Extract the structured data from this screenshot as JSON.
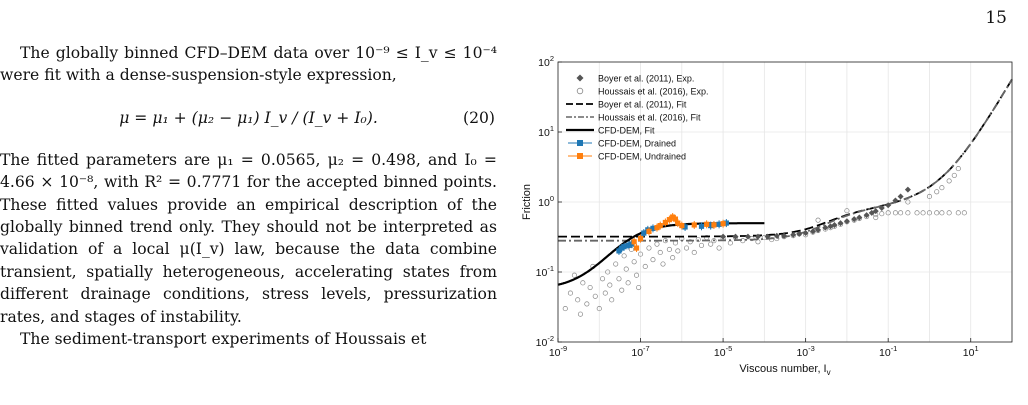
{
  "page": {
    "number": "15"
  },
  "text": {
    "p1": "The globally binned CFD–DEM data over 10⁻⁹ ≤ I_v ≤ 10⁻⁴ were fit with a dense-suspension-style expression,",
    "equation": "μ = μ₁ + (μ₂ − μ₁) I_v / (I_v + I₀).",
    "eq_number": "(20)",
    "p2": "The fitted parameters are μ₁ = 0.0565, μ₂ = 0.498, and I₀ = 4.66 × 10⁻⁸, with R² = 0.7771 for the accepted binned points. These fitted values provide an empirical description of the globally binned trend only. They should not be interpreted as validation of a local μ(I_v) law, because the data combine transient, spatially heterogeneous, accelerating states from different drainage conditions, stress levels, pressurization rates, and stages of instability.",
    "p3": "The sediment-transport experiments of Houssais et"
  },
  "chart_data": {
    "type": "scatter",
    "xlabel": "Viscous number, I",
    "xlabel_sub": "v",
    "ylabel": "Friction",
    "x_scale": "log",
    "y_scale": "log",
    "xlim": [
      1e-09,
      100
    ],
    "ylim": [
      0.01,
      100
    ],
    "x_ticks": [
      {
        "v": 1e-09,
        "base": "10",
        "exp": "-9"
      },
      {
        "v": 1e-07,
        "base": "10",
        "exp": "-7"
      },
      {
        "v": 1e-05,
        "base": "10",
        "exp": "-5"
      },
      {
        "v": 0.001,
        "base": "10",
        "exp": "-3"
      },
      {
        "v": 0.1,
        "base": "10",
        "exp": "-1"
      },
      {
        "v": 10,
        "base": "10",
        "exp": "1"
      }
    ],
    "y_ticks": [
      {
        "v": 0.01,
        "base": "10",
        "exp": "-2"
      },
      {
        "v": 0.1,
        "base": "10",
        "exp": "-1"
      },
      {
        "v": 1,
        "base": "10",
        "exp": "0"
      },
      {
        "v": 10,
        "base": "10",
        "exp": "1"
      },
      {
        "v": 100,
        "base": "10",
        "exp": "2"
      }
    ],
    "grid": true,
    "legend_position": "top-left",
    "legend": [
      {
        "label": "Boyer et al. (2011), Exp.",
        "marker": "diamond"
      },
      {
        "label": "Houssais et al. (2016), Exp.",
        "marker": "open-circle"
      },
      {
        "label": "Boyer et al. (2011), Fit",
        "marker": "dash"
      },
      {
        "label": "Houssais et al. (2016), Fit",
        "marker": "dashdot"
      },
      {
        "label": "CFD-DEM, Fit",
        "marker": "solid"
      },
      {
        "label": "CFD-DEM, Drained",
        "marker": "blue-errorbar"
      },
      {
        "label": "CFD-DEM, Undrained",
        "marker": "orange-errorbar"
      }
    ],
    "colors": {
      "boyer": "#555555",
      "houssais": "#888888",
      "fit": "#000000",
      "drained": "#1f77b4",
      "undrained": "#ff7f0e",
      "grid": "#e6e6e6"
    },
    "series": [
      {
        "name": "Boyer et al. (2011), Exp.",
        "points": [
          [
            1e-05,
            0.32
          ],
          [
            2e-05,
            0.32
          ],
          [
            4e-05,
            0.32
          ],
          [
            7e-05,
            0.32
          ],
          [
            0.00012,
            0.32
          ],
          [
            0.0002,
            0.33
          ],
          [
            0.0003,
            0.33
          ],
          [
            0.0005,
            0.34
          ],
          [
            0.0007,
            0.35
          ],
          [
            0.001,
            0.36
          ],
          [
            0.0015,
            0.38
          ],
          [
            0.002,
            0.4
          ],
          [
            0.003,
            0.43
          ],
          [
            0.004,
            0.45
          ],
          [
            0.005,
            0.47
          ],
          [
            0.007,
            0.5
          ],
          [
            0.01,
            0.53
          ],
          [
            0.015,
            0.57
          ],
          [
            0.02,
            0.6
          ],
          [
            0.03,
            0.65
          ],
          [
            0.04,
            0.7
          ],
          [
            0.05,
            0.74
          ],
          [
            0.07,
            0.82
          ],
          [
            0.1,
            0.9
          ],
          [
            0.15,
            1.05
          ],
          [
            0.2,
            1.2
          ],
          [
            0.3,
            1.5
          ]
        ]
      },
      {
        "name": "Houssais et al. (2016), Exp.",
        "points": [
          [
            1.5e-09,
            0.03
          ],
          [
            2e-09,
            0.05
          ],
          [
            2.5e-09,
            0.09
          ],
          [
            3e-09,
            0.04
          ],
          [
            3.5e-09,
            0.025
          ],
          [
            4e-09,
            0.07
          ],
          [
            5e-09,
            0.035
          ],
          [
            6e-09,
            0.06
          ],
          [
            7e-09,
            0.12
          ],
          [
            8e-09,
            0.045
          ],
          [
            1e-08,
            0.03
          ],
          [
            1.2e-08,
            0.08
          ],
          [
            1.4e-08,
            0.05
          ],
          [
            1.6e-08,
            0.1
          ],
          [
            1.8e-08,
            0.065
          ],
          [
            2e-08,
            0.04
          ],
          [
            2.5e-08,
            0.13
          ],
          [
            3e-08,
            0.08
          ],
          [
            3.5e-08,
            0.055
          ],
          [
            4e-08,
            0.17
          ],
          [
            4.5e-08,
            0.11
          ],
          [
            5e-08,
            0.07
          ],
          [
            6e-08,
            0.21
          ],
          [
            7e-08,
            0.14
          ],
          [
            8e-08,
            0.09
          ],
          [
            9e-08,
            0.06
          ],
          [
            1e-07,
            0.18
          ],
          [
            1.3e-07,
            0.12
          ],
          [
            1.6e-07,
            0.22
          ],
          [
            2e-07,
            0.15
          ],
          [
            2.5e-07,
            0.25
          ],
          [
            3e-07,
            0.19
          ],
          [
            3.5e-07,
            0.13
          ],
          [
            4e-07,
            0.28
          ],
          [
            5e-07,
            0.21
          ],
          [
            6e-07,
            0.16
          ],
          [
            7e-07,
            0.26
          ],
          [
            8e-07,
            0.2
          ],
          [
            1e-06,
            0.3
          ],
          [
            1.3e-06,
            0.22
          ],
          [
            1.6e-06,
            0.27
          ],
          [
            2e-06,
            0.19
          ],
          [
            2.5e-06,
            0.29
          ],
          [
            3e-06,
            0.24
          ],
          [
            4e-06,
            0.31
          ],
          [
            5e-06,
            0.25
          ],
          [
            6e-06,
            0.28
          ],
          [
            8e-06,
            0.22
          ],
          [
            1e-05,
            0.3
          ],
          [
            1.5e-05,
            0.26
          ],
          [
            2e-05,
            0.31
          ],
          [
            3e-05,
            0.28
          ],
          [
            5e-05,
            0.3
          ],
          [
            7e-05,
            0.27
          ],
          [
            0.0001,
            0.31
          ],
          [
            0.00015,
            0.29
          ],
          [
            0.0002,
            0.3
          ],
          [
            0.0003,
            0.32
          ],
          [
            0.0005,
            0.33
          ],
          [
            0.0007,
            0.35
          ],
          [
            0.001,
            0.34
          ],
          [
            0.0015,
            0.37
          ],
          [
            0.002,
            0.39
          ],
          [
            0.003,
            0.41
          ],
          [
            0.004,
            0.43
          ],
          [
            0.005,
            0.45
          ],
          [
            0.007,
            0.48
          ],
          [
            0.01,
            0.52
          ],
          [
            0.015,
            0.55
          ],
          [
            0.02,
            0.58
          ],
          [
            0.03,
            0.62
          ],
          [
            0.05,
            0.66
          ],
          [
            0.07,
            0.68
          ],
          [
            0.1,
            0.7
          ],
          [
            0.15,
            0.7
          ],
          [
            0.2,
            0.7
          ],
          [
            0.3,
            0.7
          ],
          [
            0.5,
            0.7
          ],
          [
            0.7,
            0.7
          ],
          [
            1,
            0.7
          ],
          [
            1.5,
            0.7
          ],
          [
            2,
            0.7
          ],
          [
            3,
            0.7
          ],
          [
            5,
            0.7
          ],
          [
            7,
            0.7
          ],
          [
            0.002,
            0.55
          ],
          [
            0.01,
            0.75
          ],
          [
            0.05,
            0.6
          ],
          [
            0.3,
            1.0
          ],
          [
            1,
            1.2
          ],
          [
            2,
            1.6
          ],
          [
            3,
            2.0
          ],
          [
            4,
            2.4
          ],
          [
            5,
            3.0
          ],
          [
            1.5,
            1.4
          ]
        ]
      },
      {
        "name": "CFD-DEM, Drained",
        "points": [
          [
            3e-08,
            0.2
          ],
          [
            3.5e-08,
            0.22
          ],
          [
            4e-08,
            0.23
          ],
          [
            5e-08,
            0.24
          ],
          [
            6e-08,
            0.25
          ],
          [
            1.2e-07,
            0.36
          ],
          [
            1.5e-07,
            0.4
          ],
          [
            2e-07,
            0.42
          ],
          [
            1.2e-06,
            0.44
          ],
          [
            3e-06,
            0.45
          ],
          [
            5e-06,
            0.46
          ],
          [
            8e-06,
            0.48
          ],
          [
            1.2e-05,
            0.5
          ]
        ]
      },
      {
        "name": "CFD-DEM, Undrained",
        "points": [
          [
            7e-08,
            0.27
          ],
          [
            8e-08,
            0.22
          ],
          [
            1e-07,
            0.3
          ],
          [
            1.6e-07,
            0.38
          ],
          [
            2.5e-07,
            0.43
          ],
          [
            3e-07,
            0.46
          ],
          [
            4e-07,
            0.51
          ],
          [
            5e-07,
            0.56
          ],
          [
            6e-07,
            0.61
          ],
          [
            7e-07,
            0.57
          ],
          [
            8e-07,
            0.5
          ],
          [
            1e-06,
            0.46
          ],
          [
            2e-06,
            0.47
          ],
          [
            4e-06,
            0.48
          ],
          [
            6e-06,
            0.47
          ],
          [
            1e-05,
            0.49
          ]
        ]
      }
    ],
    "fits": [
      {
        "name": "Boyer et al. (2011), Fit",
        "style": "dash",
        "mu1": 0.32,
        "mu2": 0.7,
        "I0": 0.005,
        "coef": 1.0,
        "exp": 0.5,
        "phi": 0.585
      },
      {
        "name": "Houssais et al. (2016), Fit",
        "style": "dashdot",
        "mu1": 0.28,
        "mu2": 0.7,
        "I0": 0.005,
        "coef": 1.0,
        "exp": 0.5,
        "phi": 0.585
      },
      {
        "name": "CFD-DEM, Fit",
        "style": "solid",
        "mu1": 0.0565,
        "mu2": 0.498,
        "I0": 4.66e-08,
        "xmax": 0.0001
      }
    ]
  }
}
